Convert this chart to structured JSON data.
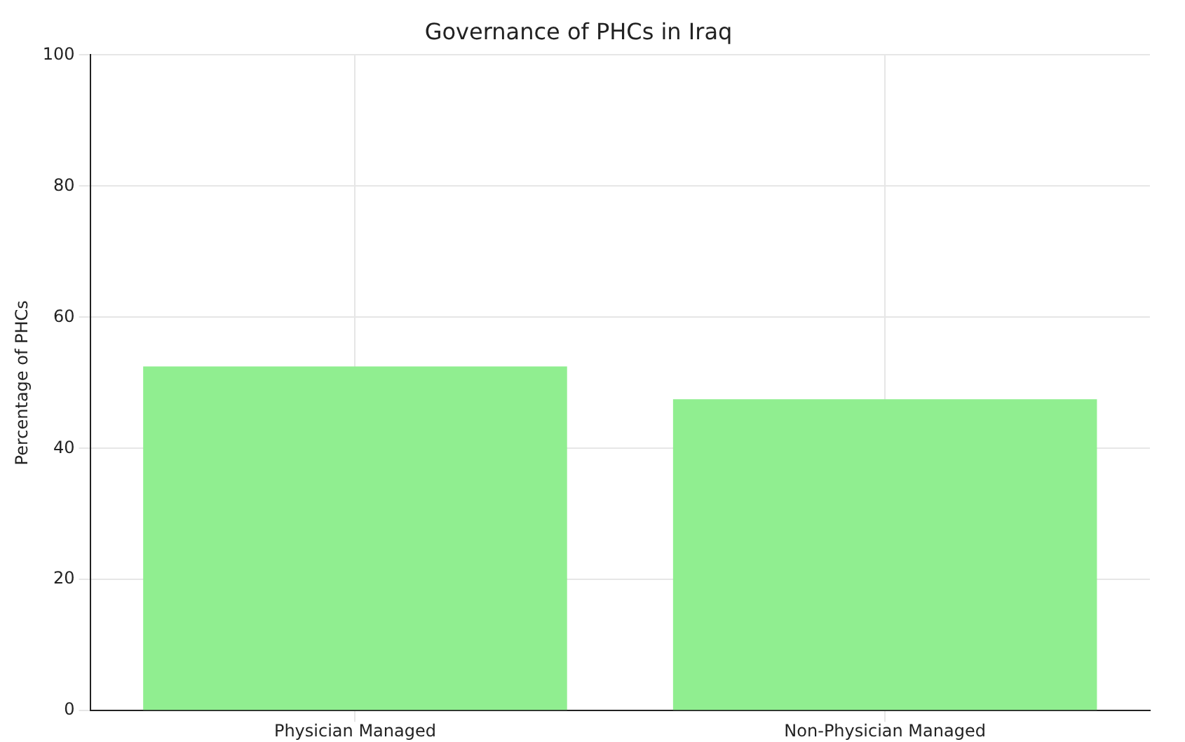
{
  "chart_data": {
    "type": "bar",
    "title": "Governance of PHCs in Iraq",
    "ylabel": "Percentage of PHCs",
    "categories": [
      "Physician Managed",
      "Non-Physician Managed"
    ],
    "values": [
      52.5,
      47.5
    ],
    "color": "#90ee90",
    "ylim": [
      0,
      100
    ],
    "yticks": [
      0,
      20,
      40,
      60,
      80,
      100
    ],
    "grid": true
  }
}
